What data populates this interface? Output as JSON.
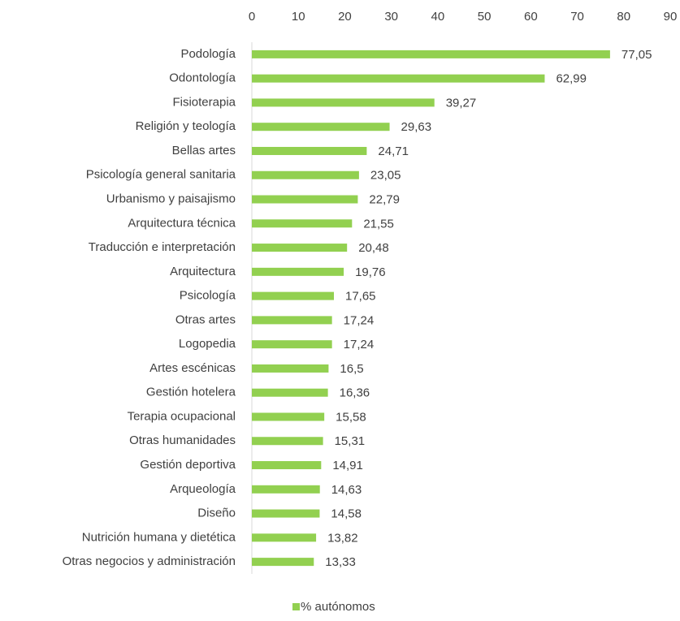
{
  "chart_data": {
    "type": "bar",
    "orientation": "horizontal",
    "categories": [
      "Podología",
      "Odontología",
      "Fisioterapia",
      "Religión y teología",
      "Bellas artes",
      "Psicología general sanitaria",
      "Urbanismo y paisajismo",
      "Arquitectura técnica",
      "Traducción e interpretación",
      "Arquitectura",
      "Psicología",
      "Otras artes",
      "Logopedia",
      "Artes escénicas",
      "Gestión hotelera",
      "Terapia ocupacional",
      "Otras humanidades",
      "Gestión deportiva",
      "Arqueología",
      "Diseño",
      "Nutrición humana y dietética",
      "Otras negocios y administración"
    ],
    "series": [
      {
        "name": "% autónomos",
        "color": "#92d050",
        "values": [
          77.05,
          62.99,
          39.27,
          29.63,
          24.71,
          23.05,
          22.79,
          21.55,
          20.48,
          19.76,
          17.65,
          17.24,
          17.24,
          16.5,
          16.36,
          15.58,
          15.31,
          14.91,
          14.63,
          14.58,
          13.82,
          13.33
        ],
        "value_labels": [
          "77,05",
          "62,99",
          "39,27",
          "29,63",
          "24,71",
          "23,05",
          "22,79",
          "21,55",
          "20,48",
          "19,76",
          "17,65",
          "17,24",
          "17,24",
          "16,5",
          "16,36",
          "15,58",
          "15,31",
          "14,91",
          "14,63",
          "14,58",
          "13,82",
          "13,33"
        ]
      }
    ],
    "xlim": [
      0,
      90
    ],
    "xticks": [
      0,
      10,
      20,
      30,
      40,
      50,
      60,
      70,
      80,
      90
    ],
    "grid": false,
    "legend": "bottom"
  }
}
